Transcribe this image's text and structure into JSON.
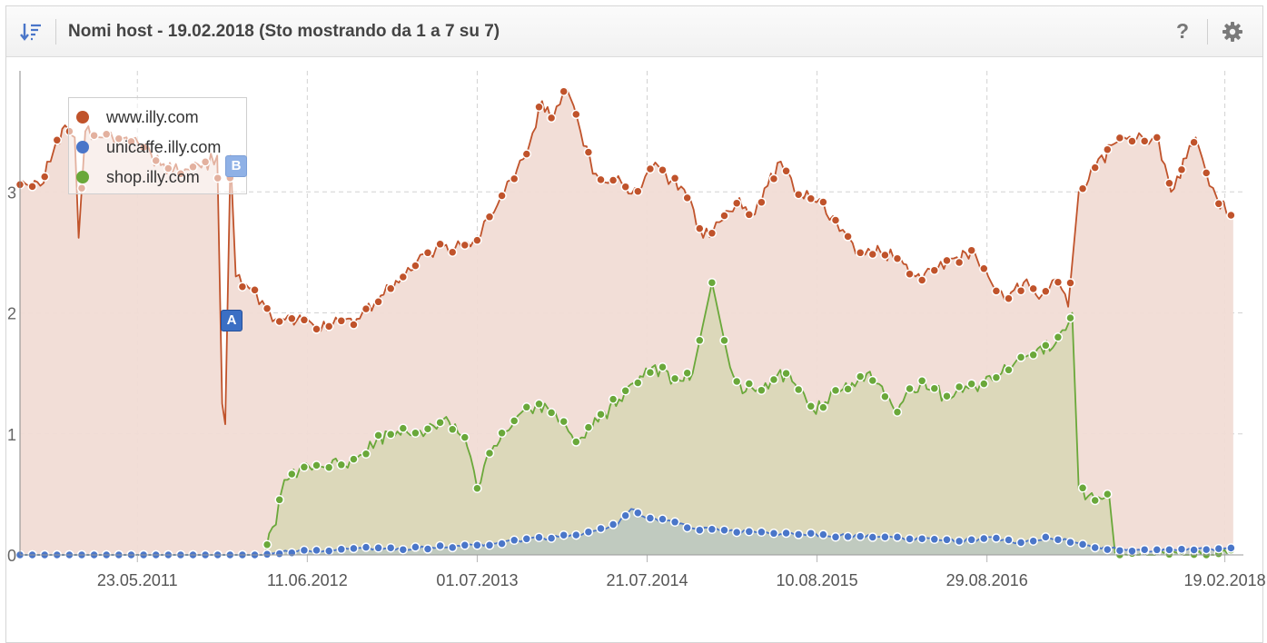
{
  "header": {
    "title": "Nomi host - 19.02.2018 (Sto mostrando da 1 a 7 su 7)",
    "help_label": "?",
    "sort_icon": "sort-descending-icon",
    "settings_icon": "gear-icon"
  },
  "markers": {
    "a": "A",
    "b": "B"
  },
  "colors": {
    "www": "#c0532b",
    "unicaffe": "#4a76c9",
    "shop": "#6aa83a",
    "www_fill": "#f1dcd5",
    "shop_fill": "#d8d7b5",
    "unicaffe_fill": "#b9c7c0"
  },
  "chart_data": {
    "type": "area",
    "title": "",
    "xlabel": "",
    "ylabel": "",
    "ylim": [
      0,
      4
    ],
    "xlim": [
      "2010-08-30",
      "2018-04-02"
    ],
    "y_ticks": [
      0,
      1,
      2,
      3
    ],
    "x_ticks": [
      "23.05.2011",
      "11.06.2012",
      "01.07.2013",
      "21.07.2014",
      "10.08.2015",
      "29.08.2016",
      "19.02.2018"
    ],
    "grid": true,
    "legend_position": "top-left",
    "series": [
      {
        "name": "www.illy.com",
        "points": [
          [
            "2010-08-30",
            3.06
          ],
          [
            "2010-10-15",
            3.05
          ],
          [
            "2010-11-15",
            3.35
          ],
          [
            "2010-12-10",
            3.55
          ],
          [
            "2011-01-01",
            3.45
          ],
          [
            "2011-01-10",
            2.62
          ],
          [
            "2011-01-25",
            3.5
          ],
          [
            "2011-03-01",
            3.45
          ],
          [
            "2011-04-15",
            3.42
          ],
          [
            "2011-06-01",
            3.38
          ],
          [
            "2011-07-15",
            3.22
          ],
          [
            "2011-09-01",
            3.15
          ],
          [
            "2011-10-15",
            3.2
          ],
          [
            "2011-11-20",
            3.3
          ],
          [
            "2011-12-01",
            1.25
          ],
          [
            "2011-12-08",
            1.08
          ],
          [
            "2011-12-20",
            3.3
          ],
          [
            "2012-01-01",
            2.3
          ],
          [
            "2012-02-01",
            2.2
          ],
          [
            "2012-03-01",
            2.1
          ],
          [
            "2012-04-01",
            1.95
          ],
          [
            "2012-06-01",
            1.92
          ],
          [
            "2012-08-01",
            1.9
          ],
          [
            "2012-10-01",
            1.95
          ],
          [
            "2012-12-01",
            2.15
          ],
          [
            "2013-02-01",
            2.35
          ],
          [
            "2013-03-15",
            2.5
          ],
          [
            "2013-04-15",
            2.55
          ],
          [
            "2013-06-01",
            2.55
          ],
          [
            "2013-07-01",
            2.6
          ],
          [
            "2013-08-01",
            2.8
          ],
          [
            "2013-09-15",
            3.1
          ],
          [
            "2013-10-20",
            3.3
          ],
          [
            "2013-11-25",
            3.75
          ],
          [
            "2013-12-20",
            3.6
          ],
          [
            "2014-01-20",
            3.85
          ],
          [
            "2014-02-20",
            3.5
          ],
          [
            "2014-03-20",
            3.15
          ],
          [
            "2014-05-01",
            3.12
          ],
          [
            "2014-06-01",
            3.05
          ],
          [
            "2014-07-01",
            3.0
          ],
          [
            "2014-08-01",
            3.2
          ],
          [
            "2014-09-15",
            3.1
          ],
          [
            "2014-10-20",
            2.95
          ],
          [
            "2014-11-25",
            2.62
          ],
          [
            "2015-01-01",
            2.75
          ],
          [
            "2015-02-15",
            2.95
          ],
          [
            "2015-03-15",
            2.8
          ],
          [
            "2015-04-20",
            3.05
          ],
          [
            "2015-05-20",
            3.25
          ],
          [
            "2015-06-20",
            3.0
          ],
          [
            "2015-08-01",
            2.93
          ],
          [
            "2015-09-15",
            2.8
          ],
          [
            "2015-10-15",
            2.65
          ],
          [
            "2015-11-20",
            2.48
          ],
          [
            "2016-01-01",
            2.5
          ],
          [
            "2016-02-15",
            2.45
          ],
          [
            "2016-03-20",
            2.3
          ],
          [
            "2016-05-01",
            2.35
          ],
          [
            "2016-06-15",
            2.45
          ],
          [
            "2016-08-01",
            2.5
          ],
          [
            "2016-09-01",
            2.3
          ],
          [
            "2016-10-15",
            2.1
          ],
          [
            "2016-11-20",
            2.25
          ],
          [
            "2017-01-01",
            2.15
          ],
          [
            "2017-02-01",
            2.28
          ],
          [
            "2017-03-01",
            2.05
          ],
          [
            "2017-03-25",
            3.0
          ],
          [
            "2017-05-01",
            3.2
          ],
          [
            "2017-06-15",
            3.4
          ],
          [
            "2017-08-01",
            3.42
          ],
          [
            "2017-09-15",
            3.47
          ],
          [
            "2017-10-20",
            3.0
          ],
          [
            "2017-12-15",
            3.45
          ],
          [
            "2018-01-15",
            3.05
          ],
          [
            "2018-02-01",
            2.95
          ],
          [
            "2018-03-10",
            2.8
          ]
        ]
      },
      {
        "name": "unicaffe.illy.com",
        "points": [
          [
            "2010-08-30",
            0.0
          ],
          [
            "2012-03-10",
            0.0
          ],
          [
            "2012-04-01",
            0.02
          ],
          [
            "2012-07-01",
            0.04
          ],
          [
            "2012-10-01",
            0.05
          ],
          [
            "2013-01-01",
            0.05
          ],
          [
            "2013-04-01",
            0.06
          ],
          [
            "2013-07-01",
            0.08
          ],
          [
            "2013-10-01",
            0.12
          ],
          [
            "2014-01-01",
            0.15
          ],
          [
            "2014-03-01",
            0.18
          ],
          [
            "2014-05-15",
            0.25
          ],
          [
            "2014-06-15",
            0.38
          ],
          [
            "2014-07-20",
            0.3
          ],
          [
            "2014-09-15",
            0.28
          ],
          [
            "2014-11-01",
            0.22
          ],
          [
            "2015-01-15",
            0.2
          ],
          [
            "2015-04-01",
            0.18
          ],
          [
            "2015-07-01",
            0.17
          ],
          [
            "2015-10-01",
            0.16
          ],
          [
            "2016-01-01",
            0.15
          ],
          [
            "2016-04-01",
            0.13
          ],
          [
            "2016-07-01",
            0.12
          ],
          [
            "2016-09-15",
            0.14
          ],
          [
            "2016-11-15",
            0.1
          ],
          [
            "2017-01-15",
            0.14
          ],
          [
            "2017-03-01",
            0.12
          ],
          [
            "2017-05-01",
            0.06
          ],
          [
            "2017-08-01",
            0.04
          ],
          [
            "2017-11-01",
            0.04
          ],
          [
            "2018-03-10",
            0.05
          ]
        ]
      },
      {
        "name": "shop.illy.com",
        "points": [
          [
            "2010-08-30",
            0.0
          ],
          [
            "2012-03-01",
            0.0
          ],
          [
            "2012-04-01",
            0.25
          ],
          [
            "2012-04-20",
            0.62
          ],
          [
            "2012-06-01",
            0.7
          ],
          [
            "2012-08-01",
            0.72
          ],
          [
            "2012-10-01",
            0.8
          ],
          [
            "2012-11-15",
            0.95
          ],
          [
            "2013-01-01",
            1.02
          ],
          [
            "2013-03-01",
            0.98
          ],
          [
            "2013-04-15",
            1.12
          ],
          [
            "2013-06-01",
            1.0
          ],
          [
            "2013-07-01",
            0.55
          ],
          [
            "2013-08-01",
            0.85
          ],
          [
            "2013-10-01",
            1.15
          ],
          [
            "2013-12-01",
            1.25
          ],
          [
            "2014-01-01",
            1.1
          ],
          [
            "2014-02-15",
            0.95
          ],
          [
            "2014-04-01",
            1.1
          ],
          [
            "2014-06-01",
            1.35
          ],
          [
            "2014-08-01",
            1.55
          ],
          [
            "2014-09-20",
            1.45
          ],
          [
            "2014-11-01",
            1.5
          ],
          [
            "2014-12-15",
            2.25
          ],
          [
            "2015-01-25",
            1.55
          ],
          [
            "2015-03-01",
            1.35
          ],
          [
            "2015-04-15",
            1.42
          ],
          [
            "2015-06-01",
            1.5
          ],
          [
            "2015-08-01",
            1.2
          ],
          [
            "2015-10-01",
            1.35
          ],
          [
            "2015-12-01",
            1.5
          ],
          [
            "2016-02-01",
            1.2
          ],
          [
            "2016-04-01",
            1.42
          ],
          [
            "2016-06-01",
            1.3
          ],
          [
            "2016-08-01",
            1.4
          ],
          [
            "2016-10-01",
            1.5
          ],
          [
            "2016-12-01",
            1.65
          ],
          [
            "2017-02-01",
            1.75
          ],
          [
            "2017-03-10",
            2.0
          ],
          [
            "2017-03-25",
            0.55
          ],
          [
            "2017-05-01",
            0.45
          ],
          [
            "2017-06-01",
            0.52
          ],
          [
            "2017-06-15",
            0.02
          ],
          [
            "2018-03-10",
            0.01
          ]
        ]
      }
    ]
  }
}
